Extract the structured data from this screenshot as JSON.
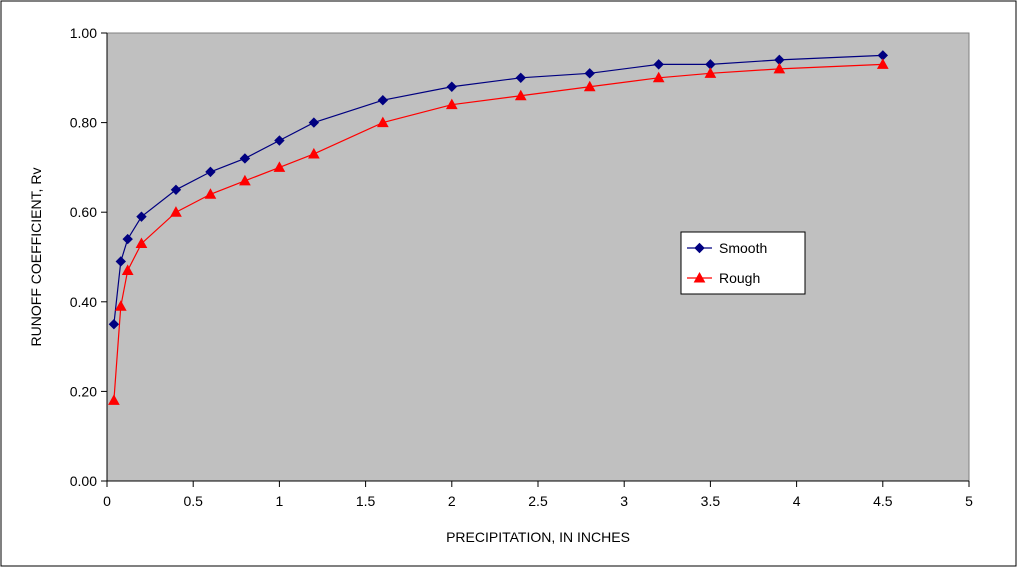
{
  "chart_data": {
    "type": "line",
    "title": "",
    "xlabel": "PRECIPITATION, IN INCHES",
    "ylabel": "RUNOFF COEFFICIENT, Rv",
    "xlim": [
      0,
      5
    ],
    "ylim": [
      0,
      1
    ],
    "x_ticks": [
      "0",
      "0.5",
      "1",
      "1.5",
      "2",
      "2.5",
      "3",
      "3.5",
      "4",
      "4.5",
      "5"
    ],
    "y_ticks": [
      "0.00",
      "0.20",
      "0.40",
      "0.60",
      "0.80",
      "1.00"
    ],
    "grid": false,
    "plot_background": "#c0c0c0",
    "legend_position": "right",
    "series": [
      {
        "name": "Smooth",
        "color": "#000080",
        "marker": "diamond",
        "x": [
          0.04,
          0.08,
          0.12,
          0.2,
          0.4,
          0.6,
          0.8,
          1.0,
          1.2,
          1.6,
          2.0,
          2.4,
          2.8,
          3.2,
          3.5,
          3.9,
          4.5
        ],
        "y": [
          0.35,
          0.49,
          0.54,
          0.59,
          0.65,
          0.69,
          0.72,
          0.76,
          0.8,
          0.85,
          0.88,
          0.9,
          0.91,
          0.93,
          0.93,
          0.94,
          0.95
        ]
      },
      {
        "name": "Rough",
        "color": "#ff0000",
        "marker": "triangle",
        "x": [
          0.04,
          0.08,
          0.12,
          0.2,
          0.4,
          0.6,
          0.8,
          1.0,
          1.2,
          1.6,
          2.0,
          2.4,
          2.8,
          3.2,
          3.5,
          3.9,
          4.5
        ],
        "y": [
          0.18,
          0.39,
          0.47,
          0.53,
          0.6,
          0.64,
          0.67,
          0.7,
          0.73,
          0.8,
          0.84,
          0.86,
          0.88,
          0.9,
          0.91,
          0.92,
          0.93
        ]
      }
    ]
  }
}
